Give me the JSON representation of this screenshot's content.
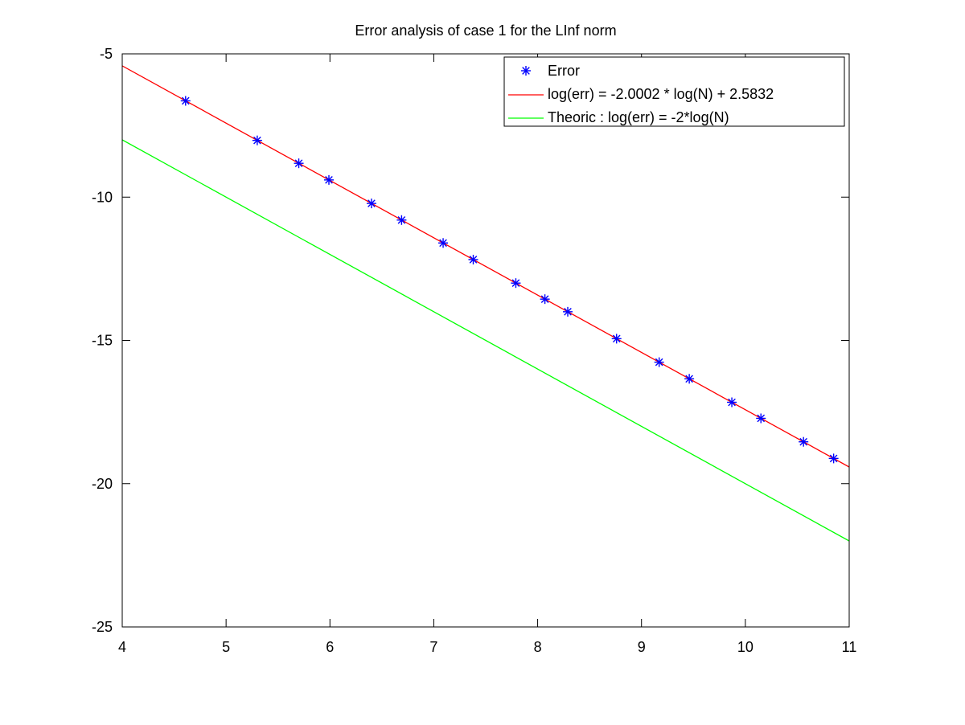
{
  "chart_data": {
    "type": "line",
    "title": "Error analysis of case 1 for the LInf norm",
    "xlabel": "",
    "ylabel": "",
    "xlim": [
      4,
      11
    ],
    "ylim": [
      -25,
      -5
    ],
    "xticks": [
      4,
      5,
      6,
      7,
      8,
      9,
      10,
      11
    ],
    "yticks": [
      -5,
      -10,
      -15,
      -20,
      -25
    ],
    "xtick_labels": [
      "4",
      "5",
      "6",
      "7",
      "8",
      "9",
      "10",
      "11"
    ],
    "ytick_labels": [
      "-5",
      "-10",
      "-15",
      "-20",
      "-25"
    ],
    "grid": false,
    "legend_position": "top-right",
    "series": [
      {
        "name": "Error",
        "style": "markers",
        "marker": "asterisk",
        "color": "#0000ff",
        "x": [
          4.61,
          5.3,
          5.7,
          5.99,
          6.4,
          6.69,
          7.09,
          7.38,
          7.79,
          8.07,
          8.29,
          8.76,
          9.17,
          9.46,
          9.87,
          10.15,
          10.56,
          10.85
        ],
        "y": [
          -6.64,
          -8.02,
          -8.82,
          -9.4,
          -10.22,
          -10.8,
          -11.6,
          -12.18,
          -13.0,
          -13.56,
          -14.0,
          -14.94,
          -15.76,
          -16.34,
          -17.16,
          -17.72,
          -18.54,
          -19.12
        ]
      },
      {
        "name": "log(err) = -2.0002 * log(N) + 2.5832",
        "style": "line",
        "color": "#ff0000",
        "x": [
          4,
          11
        ],
        "y": [
          -5.4176,
          -19.419
        ]
      },
      {
        "name": "Theoric : log(err) = -2*log(N)",
        "style": "line",
        "color": "#00ff00",
        "x": [
          4,
          11
        ],
        "y": [
          -8,
          -22
        ]
      }
    ]
  }
}
